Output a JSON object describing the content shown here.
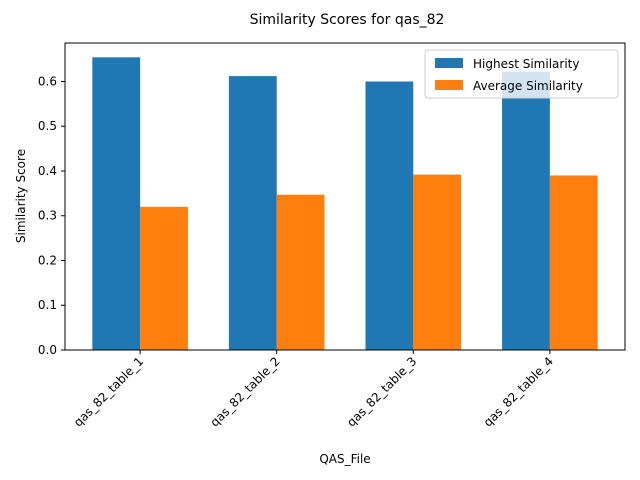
{
  "chart_data": {
    "type": "bar",
    "title": "Similarity Scores for qas_82",
    "xlabel": "QAS_File",
    "ylabel": "Similarity Score",
    "categories": [
      "qas_82_table_1",
      "qas_82_table_2",
      "qas_82_table_3",
      "qas_82_table_4"
    ],
    "series": [
      {
        "name": "Highest Similarity",
        "values": [
          0.654,
          0.612,
          0.6,
          0.622
        ],
        "color": "#1f77b4"
      },
      {
        "name": "Average Similarity",
        "values": [
          0.32,
          0.347,
          0.392,
          0.39
        ],
        "color": "#ff7f0e"
      }
    ],
    "ylim": [
      0,
      0.686
    ],
    "yticks": [
      0.0,
      0.1,
      0.2,
      0.3,
      0.4,
      0.5,
      0.6
    ],
    "ytick_labels": [
      "0.0",
      "0.1",
      "0.2",
      "0.3",
      "0.4",
      "0.5",
      "0.6"
    ],
    "grid": false,
    "legend_position": "top-right"
  }
}
